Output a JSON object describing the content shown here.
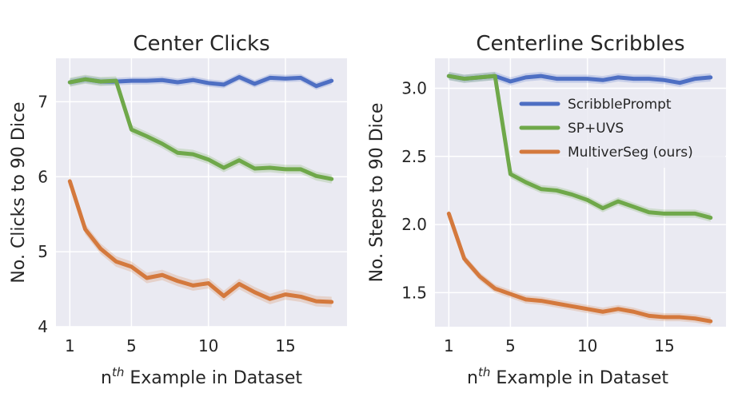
{
  "chart_data": [
    {
      "type": "line",
      "title": "Center Clicks",
      "xlabel": "n",
      "xlabel_sup": "th",
      "xlabel_rest": " Example in Dataset",
      "ylabel": "No. Clicks to 90 Dice",
      "xlim": [
        0.1,
        19.0
      ],
      "ylim": [
        4.0,
        7.58
      ],
      "xticks": [
        1,
        5,
        10,
        15
      ],
      "yticks": [
        4,
        5,
        6,
        7
      ],
      "x": [
        1,
        2,
        3,
        4,
        5,
        6,
        7,
        8,
        9,
        10,
        11,
        12,
        13,
        14,
        15,
        16,
        17,
        18
      ],
      "series": [
        {
          "name": "ScribblePrompt",
          "color": "#4e6fc3",
          "values": [
            7.26,
            7.3,
            7.27,
            7.27,
            7.28,
            7.28,
            7.29,
            7.26,
            7.29,
            7.25,
            7.23,
            7.33,
            7.24,
            7.32,
            7.31,
            7.32,
            7.21,
            7.28
          ],
          "band": 0.05
        },
        {
          "name": "SP+UVS",
          "color": "#6fa84a",
          "values": [
            7.26,
            7.3,
            7.27,
            7.28,
            6.63,
            6.54,
            6.44,
            6.32,
            6.3,
            6.23,
            6.12,
            6.22,
            6.11,
            6.12,
            6.1,
            6.1,
            6.01,
            5.97
          ],
          "band": 0.06
        },
        {
          "name": "MultiverSeg (ours)",
          "color": "#d4793d",
          "values": [
            5.94,
            5.3,
            5.04,
            4.87,
            4.8,
            4.65,
            4.69,
            4.61,
            4.55,
            4.58,
            4.41,
            4.57,
            4.46,
            4.37,
            4.43,
            4.4,
            4.34,
            4.33
          ],
          "band": 0.07
        }
      ]
    },
    {
      "type": "line",
      "title": "Centerline Scribbles",
      "xlabel": "n",
      "xlabel_sup": "th",
      "xlabel_rest": " Example in Dataset",
      "ylabel": "No. Steps to 90 Dice",
      "xlim": [
        0.1,
        19.0
      ],
      "ylim": [
        1.25,
        3.22
      ],
      "xticks": [
        1,
        5,
        10,
        15
      ],
      "yticks": [
        1.5,
        2.0,
        2.5,
        3.0
      ],
      "ytick_labels": [
        "1.5",
        "2.0",
        "2.5",
        "3.0"
      ],
      "legend": "top-right",
      "x": [
        1,
        2,
        3,
        4,
        5,
        6,
        7,
        8,
        9,
        10,
        11,
        12,
        13,
        14,
        15,
        16,
        17,
        18
      ],
      "series": [
        {
          "name": "ScribblePrompt",
          "color": "#4e6fc3",
          "values": [
            3.09,
            3.07,
            3.08,
            3.09,
            3.05,
            3.08,
            3.09,
            3.07,
            3.07,
            3.07,
            3.06,
            3.08,
            3.07,
            3.07,
            3.06,
            3.04,
            3.07,
            3.08
          ],
          "band": 0.03
        },
        {
          "name": "SP+UVS",
          "color": "#6fa84a",
          "values": [
            3.09,
            3.07,
            3.08,
            3.09,
            2.37,
            2.31,
            2.26,
            2.25,
            2.22,
            2.18,
            2.12,
            2.17,
            2.13,
            2.09,
            2.08,
            2.08,
            2.08,
            2.05
          ],
          "band": 0.03
        },
        {
          "name": "MultiverSeg (ours)",
          "color": "#d4793d",
          "values": [
            2.08,
            1.75,
            1.62,
            1.53,
            1.49,
            1.45,
            1.44,
            1.42,
            1.4,
            1.38,
            1.36,
            1.38,
            1.36,
            1.33,
            1.32,
            1.32,
            1.31,
            1.29
          ],
          "band": 0.03
        }
      ]
    }
  ]
}
